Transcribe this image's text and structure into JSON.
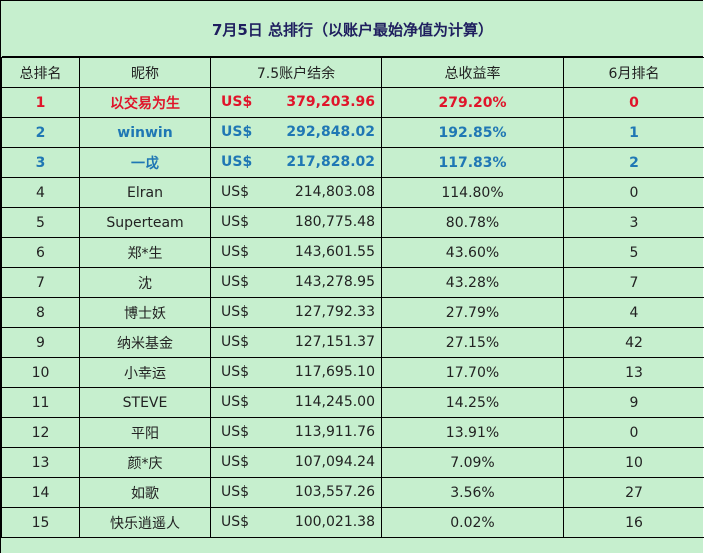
{
  "title": "7月5日 总排行（以账户最始净值为计算）",
  "headers": [
    "总排名",
    "昵称",
    "7.5账户结余",
    "总收益率",
    "6月排名"
  ],
  "currency": "US$",
  "colors": {
    "background": "#c6efce",
    "rank1": "#e0142a",
    "rank2": "#1f77b4",
    "rank3": "#1f77b4"
  },
  "rows": [
    {
      "rank": "1",
      "name": "以交易为生",
      "balance": "379,203.96",
      "return": "279.20%",
      "prev": "0",
      "color": "#e0142a",
      "bold": true
    },
    {
      "rank": "2",
      "name": "winwin",
      "balance": "292,848.02",
      "return": "192.85%",
      "prev": "1",
      "color": "#1f77b4",
      "bold": true
    },
    {
      "rank": "3",
      "name": "一戉",
      "balance": "217,828.02",
      "return": "117.83%",
      "prev": "2",
      "color": "#1f77b4",
      "bold": true
    },
    {
      "rank": "4",
      "name": "Elran",
      "balance": "214,803.08",
      "return": "114.80%",
      "prev": "0"
    },
    {
      "rank": "5",
      "name": "Superteam",
      "balance": "180,775.48",
      "return": "80.78%",
      "prev": "3"
    },
    {
      "rank": "6",
      "name": "郑*生",
      "balance": "143,601.55",
      "return": "43.60%",
      "prev": "5"
    },
    {
      "rank": "7",
      "name": "沈",
      "balance": "143,278.95",
      "return": "43.28%",
      "prev": "7"
    },
    {
      "rank": "8",
      "name": "博士妖",
      "balance": "127,792.33",
      "return": "27.79%",
      "prev": "4"
    },
    {
      "rank": "9",
      "name": "纳米基金",
      "balance": "127,151.37",
      "return": "27.15%",
      "prev": "42"
    },
    {
      "rank": "10",
      "name": "小幸运",
      "balance": "117,695.10",
      "return": "17.70%",
      "prev": "13"
    },
    {
      "rank": "11",
      "name": "STEVE",
      "balance": "114,245.00",
      "return": "14.25%",
      "prev": "9"
    },
    {
      "rank": "12",
      "name": "平阳",
      "balance": "113,911.76",
      "return": "13.91%",
      "prev": "0"
    },
    {
      "rank": "13",
      "name": "颜*庆",
      "balance": "107,094.24",
      "return": "7.09%",
      "prev": "10"
    },
    {
      "rank": "14",
      "name": "如歌",
      "balance": "103,557.26",
      "return": "3.56%",
      "prev": "27"
    },
    {
      "rank": "15",
      "name": "快乐逍遥人",
      "balance": "100,021.38",
      "return": "0.02%",
      "prev": "16"
    }
  ]
}
